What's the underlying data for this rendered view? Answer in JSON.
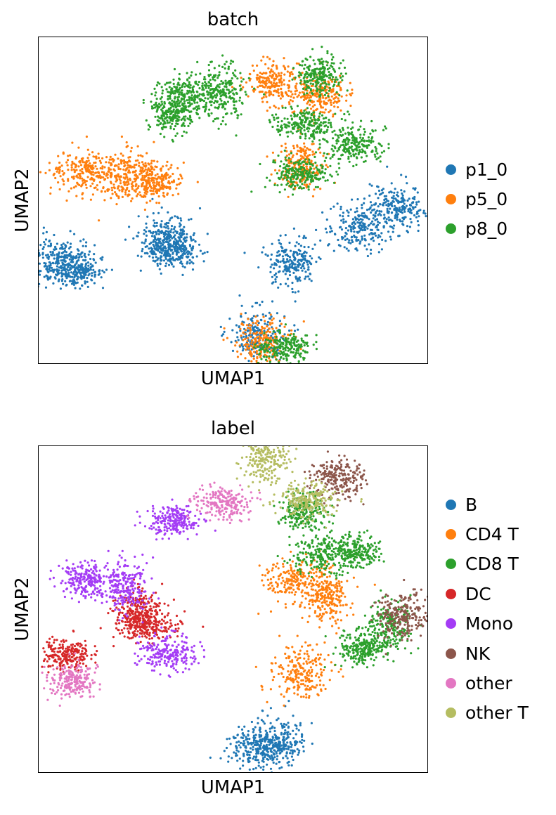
{
  "panels": [
    {
      "title": "batch",
      "xlabel": "UMAP1",
      "ylabel": "UMAP2",
      "legend": [
        {
          "label": "p1_0",
          "color": "#1f77b4"
        },
        {
          "label": "p5_0",
          "color": "#ff7f0e"
        },
        {
          "label": "p8_0",
          "color": "#2ca02c"
        }
      ]
    },
    {
      "title": "label",
      "xlabel": "UMAP1",
      "ylabel": "UMAP2",
      "legend": [
        {
          "label": "B",
          "color": "#1f77b4"
        },
        {
          "label": "CD4 T",
          "color": "#ff7f0e"
        },
        {
          "label": "CD8 T",
          "color": "#2ca02c"
        },
        {
          "label": "DC",
          "color": "#d62728"
        },
        {
          "label": "Mono",
          "color": "#a43cf5"
        },
        {
          "label": "NK",
          "color": "#8c564b"
        },
        {
          "label": "other",
          "color": "#e377c2"
        },
        {
          "label": "other T",
          "color": "#b5bd61"
        }
      ]
    }
  ],
  "chart_data": [
    {
      "type": "scatter",
      "title": "batch",
      "xlabel": "UMAP1",
      "ylabel": "UMAP2",
      "ticks": "none",
      "grid": false,
      "legend_position": "right",
      "series": [
        {
          "name": "p1_0",
          "clusters": [
            [
              0.34,
              0.65
            ],
            [
              0.33,
              0.61
            ],
            [
              0.65,
              0.69
            ],
            [
              0.82,
              0.58
            ],
            [
              0.92,
              0.52
            ],
            [
              0.56,
              0.91
            ],
            [
              0.06,
              0.67
            ],
            [
              0.09,
              0.72
            ]
          ]
        },
        {
          "name": "p5_0",
          "clusters": [
            [
              0.12,
              0.41
            ],
            [
              0.22,
              0.42
            ],
            [
              0.3,
              0.44
            ],
            [
              0.72,
              0.18
            ],
            [
              0.67,
              0.4
            ],
            [
              0.57,
              0.93
            ],
            [
              0.6,
              0.14
            ]
          ]
        },
        {
          "name": "p8_0",
          "clusters": [
            [
              0.34,
              0.23
            ],
            [
              0.38,
              0.18
            ],
            [
              0.72,
              0.12
            ],
            [
              0.68,
              0.26
            ],
            [
              0.81,
              0.33
            ],
            [
              0.67,
              0.42
            ],
            [
              0.47,
              0.16
            ],
            [
              0.63,
              0.95
            ]
          ]
        }
      ]
    },
    {
      "type": "scatter",
      "title": "label",
      "xlabel": "UMAP1",
      "ylabel": "UMAP2",
      "ticks": "none",
      "grid": false,
      "legend_position": "right",
      "series": [
        {
          "name": "B",
          "clusters": [
            [
              0.56,
              0.92
            ],
            [
              0.62,
              0.9
            ]
          ]
        },
        {
          "name": "CD4 T",
          "clusters": [
            [
              0.66,
              0.41
            ],
            [
              0.74,
              0.46
            ],
            [
              0.67,
              0.69
            ]
          ]
        },
        {
          "name": "CD8 T",
          "clusters": [
            [
              0.68,
              0.2
            ],
            [
              0.73,
              0.33
            ],
            [
              0.81,
              0.32
            ],
            [
              0.83,
              0.62
            ],
            [
              0.9,
              0.55
            ]
          ]
        },
        {
          "name": "DC",
          "clusters": [
            [
              0.25,
              0.5
            ],
            [
              0.28,
              0.55
            ],
            [
              0.07,
              0.64
            ]
          ]
        },
        {
          "name": "Mono",
          "clusters": [
            [
              0.34,
              0.23
            ],
            [
              0.12,
              0.41
            ],
            [
              0.22,
              0.43
            ],
            [
              0.33,
              0.63
            ]
          ]
        },
        {
          "name": "NK",
          "clusters": [
            [
              0.77,
              0.1
            ],
            [
              0.93,
              0.52
            ]
          ]
        },
        {
          "name": "other",
          "clusters": [
            [
              0.47,
              0.17
            ],
            [
              0.09,
              0.72
            ]
          ]
        },
        {
          "name": "other T",
          "clusters": [
            [
              0.58,
              0.04
            ],
            [
              0.69,
              0.16
            ]
          ]
        }
      ]
    }
  ]
}
